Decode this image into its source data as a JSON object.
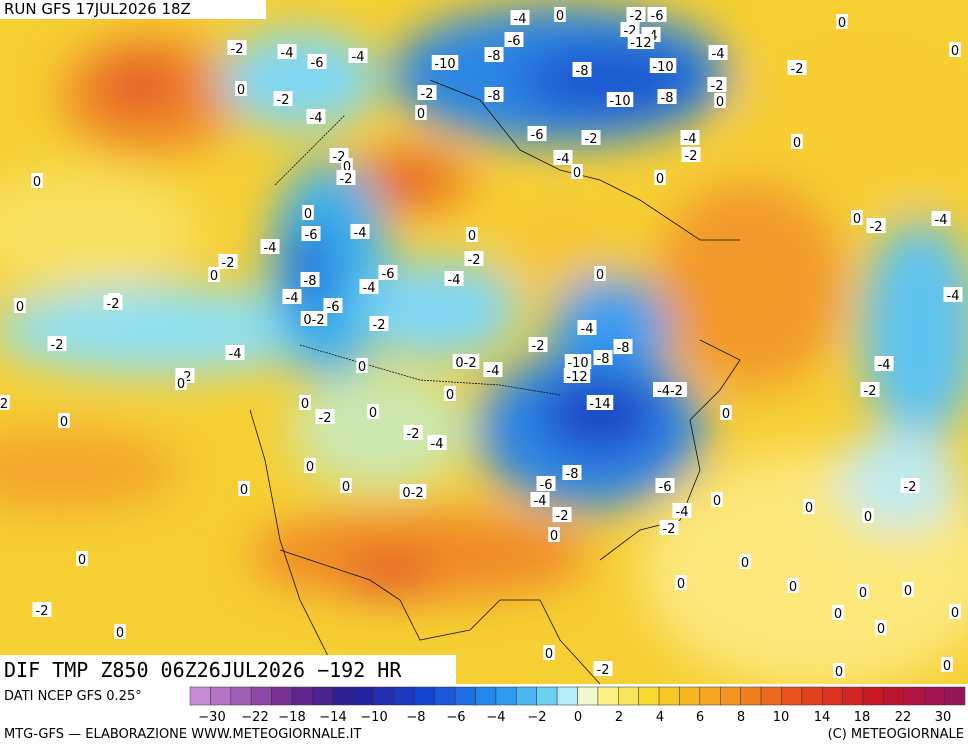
{
  "header": {
    "run": "RUN GFS 17JUL2026 18Z"
  },
  "product": "DIF TMP Z850 06Z26JUL2026 −192 HR",
  "source": "DATI NCEP GFS 0.25°",
  "credit": "MTG-GFS — ELABORAZIONE WWW.METEOGIORNALE.IT",
  "copyright": "(C) METEOGIORNALE",
  "colorbar": {
    "labels": [
      "−30",
      "−22",
      "−18",
      "−14",
      "−10",
      "−8",
      "−6",
      "−4",
      "−2",
      "0",
      "2",
      "4",
      "6",
      "8",
      "10",
      "14",
      "18",
      "22",
      "30"
    ]
  },
  "map": {
    "labels": [
      "-4",
      "0",
      "-2",
      "-6",
      "0",
      "-2",
      "-4",
      "-6",
      "-4",
      "-10",
      "-8",
      "-6",
      "-2",
      "-4",
      "-12",
      "-4",
      "0",
      "-8",
      "-10",
      "-2",
      "0",
      "-2",
      "-2",
      "-8",
      "-10",
      "-8",
      "-2",
      "0",
      "-4",
      "0",
      "-6",
      "-2",
      "-4",
      "0",
      "-2",
      "-2",
      "0",
      "-2",
      "-4",
      "0",
      "0",
      "0",
      "0",
      "0",
      "-2",
      "-4",
      "-6",
      "-4",
      "0",
      "-4",
      "-2",
      "0",
      "-2",
      "-6",
      "0",
      "-8",
      "-4",
      "-4",
      "-4",
      "0",
      "-2",
      "0",
      "-6",
      "-4",
      "0-2",
      "-2",
      "-4",
      "-8",
      "-2",
      "-4",
      "-2",
      "-10",
      "-8",
      "0",
      "0-2",
      "-4",
      "-12",
      "-4",
      "-2",
      "0",
      "-4-2",
      "0",
      "-2",
      "2",
      "0",
      "-14",
      "0",
      "-2",
      "0",
      "0",
      "-2",
      "-4",
      "0",
      "-6",
      "-8",
      "-6",
      "0",
      "0",
      "0-2",
      "-2",
      "-4",
      "0",
      "-2",
      "-4",
      "0",
      "0",
      "0",
      "-2",
      "0",
      "0",
      "0",
      "0",
      "0",
      "0",
      "-2",
      "0",
      "0",
      "0",
      "0",
      "0",
      "-2",
      "0",
      "0"
    ]
  }
}
